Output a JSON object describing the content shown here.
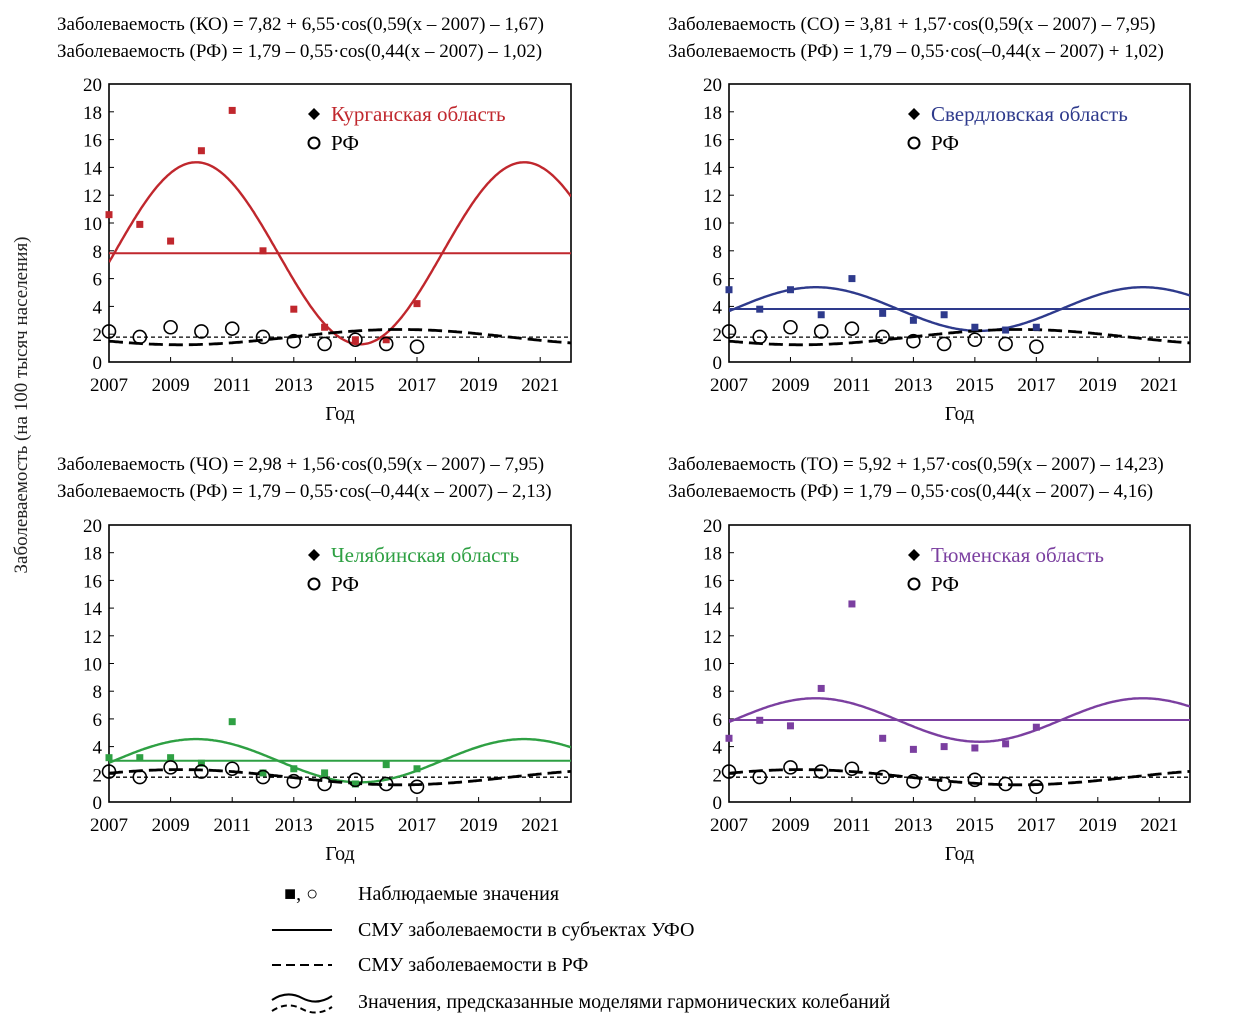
{
  "figure": {
    "y_axis_label": "Заболеваемость (на 100 тысяч населения)",
    "legend": {
      "observed_marker_text": "■, ○",
      "observed": "Наблюдаемые значения",
      "smu_region": "СМУ заболеваемости в субъектах УФО",
      "smu_rf": "СМУ заболеваемости в РФ",
      "harmonic": "Значения, предсказанные моделями гармонических колебаний"
    }
  },
  "chart_data": [
    {
      "type": "scatter",
      "equation_region": "Заболеваемость (КО) = 7,82 + 6,55·cos(0,59(x – 2007) – 1,67)",
      "equation_rf": "Заболеваемость (РФ) = 1,79 – 0,55·cos(0,44(x – 2007) – 1,02)",
      "xlabel": "Год",
      "xlim": [
        2007,
        2022
      ],
      "ylim": [
        0,
        20
      ],
      "x_ticks": [
        "2007",
        "2009",
        "2011",
        "2013",
        "2015",
        "2017",
        "2019",
        "2021"
      ],
      "y_ticks": [
        "0",
        "2",
        "4",
        "6",
        "8",
        "10",
        "12",
        "14",
        "16",
        "18",
        "20"
      ],
      "legend_region": "Курганская область",
      "legend_rf": "РФ",
      "color": "#c0272d",
      "region_model": {
        "a": 7.82,
        "b": 6.55,
        "w": 0.59,
        "p": -1.67
      },
      "rf_model": {
        "a": 1.79,
        "b": -0.55,
        "w": 0.44,
        "p": -1.02
      },
      "region_mean": 7.82,
      "rf_mean": 1.79,
      "region_observed": {
        "x": [
          2007,
          2008,
          2009,
          2010,
          2011,
          2012,
          2013,
          2014,
          2015,
          2016,
          2017
        ],
        "y": [
          10.6,
          9.9,
          8.7,
          15.2,
          18.1,
          8.0,
          3.8,
          2.5,
          1.6,
          1.6,
          4.2
        ]
      },
      "rf_observed": {
        "x": [
          2007,
          2008,
          2009,
          2010,
          2011,
          2012,
          2013,
          2014,
          2015,
          2016,
          2017
        ],
        "y": [
          2.2,
          1.8,
          2.5,
          2.2,
          2.4,
          1.8,
          1.5,
          1.3,
          1.6,
          1.3,
          1.1
        ]
      }
    },
    {
      "type": "scatter",
      "equation_region": "Заболеваемость (СО) = 3,81 + 1,57·cos(0,59(x – 2007) – 7,95)",
      "equation_rf": "Заболеваемость (РФ) = 1,79 – 0,55·cos(–0,44(x – 2007) + 1,02)",
      "xlabel": "Год",
      "xlim": [
        2007,
        2022
      ],
      "ylim": [
        0,
        20
      ],
      "x_ticks": [
        "2007",
        "2009",
        "2011",
        "2013",
        "2015",
        "2017",
        "2019",
        "2021"
      ],
      "y_ticks": [
        "0",
        "2",
        "4",
        "6",
        "8",
        "10",
        "12",
        "14",
        "16",
        "18",
        "20"
      ],
      "legend_region": "Свердловская область",
      "legend_rf": "РФ",
      "color": "#2e3a8c",
      "region_model": {
        "a": 3.81,
        "b": 1.57,
        "w": 0.59,
        "p": -7.95
      },
      "rf_model": {
        "a": 1.79,
        "b": -0.55,
        "w": -0.44,
        "p": 1.02
      },
      "region_mean": 3.81,
      "rf_mean": 1.79,
      "region_observed": {
        "x": [
          2007,
          2008,
          2009,
          2010,
          2011,
          2012,
          2013,
          2014,
          2015,
          2016,
          2017
        ],
        "y": [
          5.2,
          3.8,
          5.2,
          3.4,
          6.0,
          3.5,
          3.0,
          3.4,
          2.5,
          2.3,
          2.5
        ]
      },
      "rf_observed": {
        "x": [
          2007,
          2008,
          2009,
          2010,
          2011,
          2012,
          2013,
          2014,
          2015,
          2016,
          2017
        ],
        "y": [
          2.2,
          1.8,
          2.5,
          2.2,
          2.4,
          1.8,
          1.5,
          1.3,
          1.6,
          1.3,
          1.1
        ]
      }
    },
    {
      "type": "scatter",
      "equation_region": "Заболеваемость (ЧО) = 2,98 + 1,56·cos(0,59(x – 2007) – 7,95)",
      "equation_rf": "Заболеваемость (РФ) = 1,79 – 0,55·cos(–0,44(x – 2007) – 2,13)",
      "xlabel": "Год",
      "xlim": [
        2007,
        2022
      ],
      "ylim": [
        0,
        20
      ],
      "x_ticks": [
        "2007",
        "2009",
        "2011",
        "2013",
        "2015",
        "2017",
        "2019",
        "2021"
      ],
      "y_ticks": [
        "0",
        "2",
        "4",
        "6",
        "8",
        "10",
        "12",
        "14",
        "16",
        "18",
        "20"
      ],
      "legend_region": "Челябинская область",
      "legend_rf": "РФ",
      "color": "#2ea043",
      "region_model": {
        "a": 2.98,
        "b": 1.56,
        "w": 0.59,
        "p": -7.95
      },
      "rf_model": {
        "a": 1.79,
        "b": -0.55,
        "w": -0.44,
        "p": -2.13
      },
      "region_mean": 2.98,
      "rf_mean": 1.79,
      "region_observed": {
        "x": [
          2007,
          2008,
          2009,
          2010,
          2011,
          2012,
          2013,
          2014,
          2015,
          2016,
          2017
        ],
        "y": [
          3.2,
          3.2,
          3.2,
          2.8,
          5.8,
          2.1,
          2.4,
          2.1,
          1.3,
          2.7,
          2.4
        ]
      },
      "rf_observed": {
        "x": [
          2007,
          2008,
          2009,
          2010,
          2011,
          2012,
          2013,
          2014,
          2015,
          2016,
          2017
        ],
        "y": [
          2.2,
          1.8,
          2.5,
          2.2,
          2.4,
          1.8,
          1.5,
          1.3,
          1.6,
          1.3,
          1.1
        ]
      }
    },
    {
      "type": "scatter",
      "equation_region": "Заболеваемость (ТО) = 5,92 + 1,57·cos(0,59(x – 2007) – 14,23)",
      "equation_rf": "Заболеваемость (РФ) = 1,79 – 0,55·cos(0,44(x – 2007) – 4,16)",
      "xlabel": "Год",
      "xlim": [
        2007,
        2022
      ],
      "ylim": [
        0,
        20
      ],
      "x_ticks": [
        "2007",
        "2009",
        "2011",
        "2013",
        "2015",
        "2017",
        "2019",
        "2021"
      ],
      "y_ticks": [
        "0",
        "2",
        "4",
        "6",
        "8",
        "10",
        "12",
        "14",
        "16",
        "18",
        "20"
      ],
      "legend_region": "Тюменская область",
      "legend_rf": "РФ",
      "color": "#7b3fa0",
      "region_model": {
        "a": 5.92,
        "b": 1.57,
        "w": 0.59,
        "p": -14.23
      },
      "rf_model": {
        "a": 1.79,
        "b": -0.55,
        "w": 0.44,
        "p": -4.16
      },
      "region_mean": 5.92,
      "rf_mean": 1.79,
      "region_observed": {
        "x": [
          2007,
          2008,
          2009,
          2010,
          2011,
          2012,
          2013,
          2014,
          2015,
          2016,
          2017
        ],
        "y": [
          4.6,
          5.9,
          5.5,
          8.2,
          14.3,
          4.6,
          3.8,
          4.0,
          3.9,
          4.2,
          5.4
        ]
      },
      "rf_observed": {
        "x": [
          2007,
          2008,
          2009,
          2010,
          2011,
          2012,
          2013,
          2014,
          2015,
          2016,
          2017
        ],
        "y": [
          2.2,
          1.8,
          2.5,
          2.2,
          2.4,
          1.8,
          1.5,
          1.3,
          1.6,
          1.3,
          1.1
        ]
      }
    }
  ]
}
